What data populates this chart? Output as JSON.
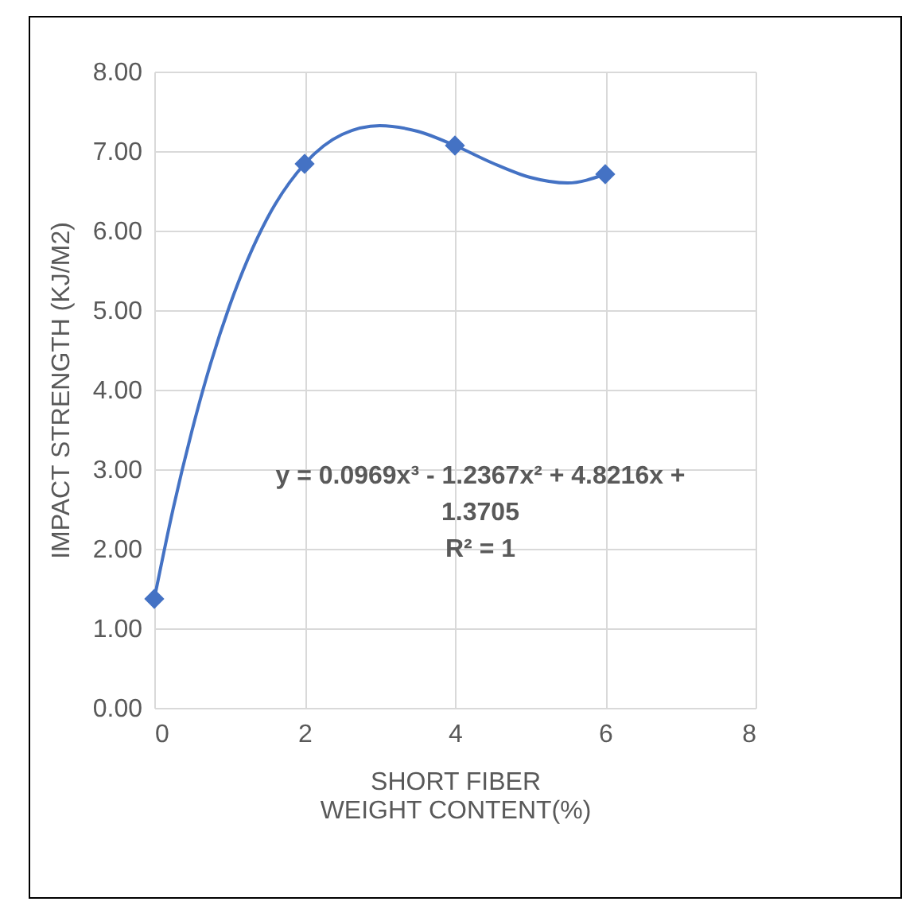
{
  "chart_data": {
    "type": "scatter",
    "xlabel": "SHORT FIBER WEIGHT CONTENT(%)",
    "ylabel": "IMPACT STRENGTH (KJ/M2)",
    "x": [
      0,
      2,
      4,
      6
    ],
    "series": [
      {
        "color": "#4472c4",
        "marker": "diamond",
        "values": [
          1.37,
          6.84,
          7.07,
          6.71
        ]
      },
      {
        "type": "line",
        "color": "#4472c4",
        "x": [
          0,
          0.25,
          0.5,
          0.75,
          1,
          1.5,
          2,
          2.5,
          3,
          3.5,
          4,
          4.5,
          5,
          5.5,
          6
        ],
        "values": [
          1.37,
          2.5,
          3.48,
          4.33,
          5.05,
          6.15,
          6.84,
          7.21,
          7.32,
          7.25,
          7.07,
          6.85,
          6.67,
          6.6,
          6.71
        ]
      }
    ],
    "xlim": [
      0,
      8
    ],
    "xticks": [
      0,
      2,
      4,
      6,
      8
    ],
    "ylim": [
      0,
      8
    ],
    "yticks": [
      {
        "value": 0,
        "label": "0.00"
      },
      {
        "value": 1,
        "label": "1.00"
      },
      {
        "value": 2,
        "label": "2.00"
      },
      {
        "value": 3,
        "label": "3.00"
      },
      {
        "value": 4,
        "label": "4.00"
      },
      {
        "value": 5,
        "label": "5.00"
      },
      {
        "value": 6,
        "label": "6.00"
      },
      {
        "value": 7,
        "label": "7.00"
      },
      {
        "value": 8,
        "label": "8.00"
      }
    ],
    "grid": true,
    "annotations": [
      "y = 0.0969x³ - 1.2367x² + 4.8216x + 1.3705",
      "R² = 1"
    ]
  }
}
